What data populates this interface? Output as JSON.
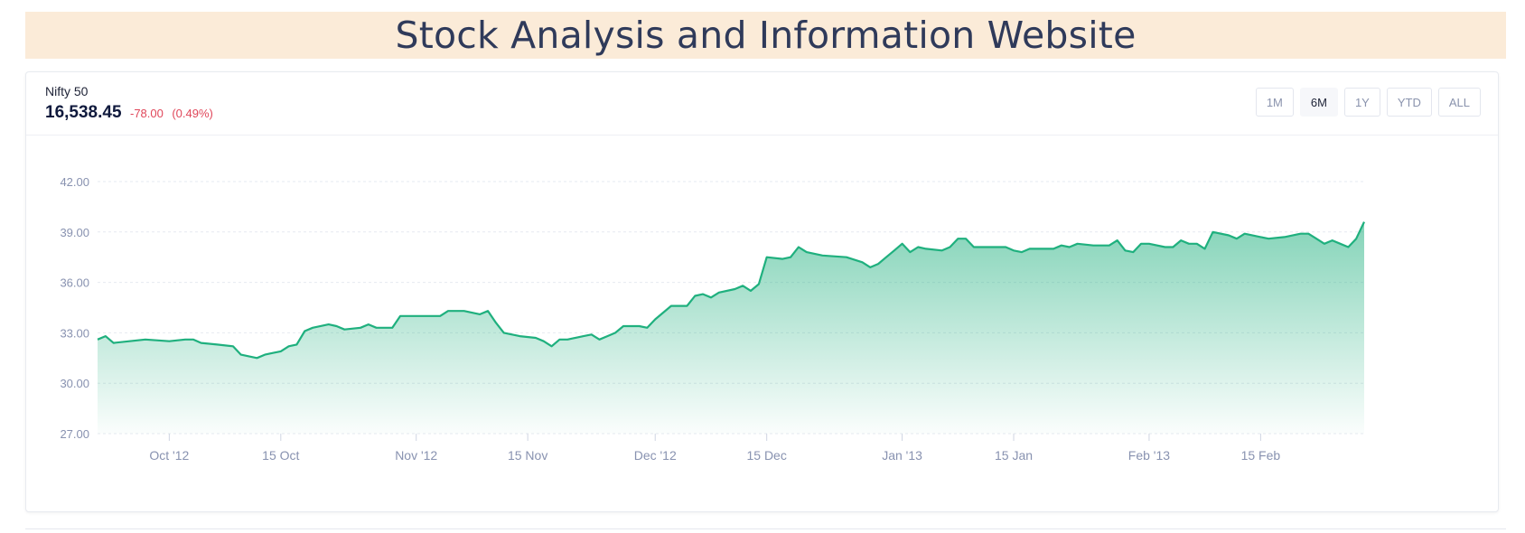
{
  "page": {
    "title": "Stock Analysis and Information Website"
  },
  "stock": {
    "name": "Nifty 50",
    "price": "16,538.45",
    "change": "-78.00",
    "change_pct": "(0.49%)"
  },
  "range_buttons": [
    {
      "label": "1M",
      "active": false
    },
    {
      "label": "6M",
      "active": true
    },
    {
      "label": "1Y",
      "active": false
    },
    {
      "label": "YTD",
      "active": false
    },
    {
      "label": "ALL",
      "active": false
    }
  ],
  "colors": {
    "line": "#1fb07e",
    "area_top": "#1fb07e",
    "negative": "#e0475a",
    "header_bg": "#fbebd8"
  },
  "chart_data": {
    "type": "area",
    "x_range": [
      "2012-09-22",
      "2013-02-28"
    ],
    "ylim": [
      27,
      42
    ],
    "y_ticks": [
      "27.00",
      "30.00",
      "33.00",
      "36.00",
      "39.00",
      "42.00"
    ],
    "x_ticks": [
      {
        "label": "Oct '12",
        "date": "2012-10-01"
      },
      {
        "label": "15 Oct",
        "date": "2012-10-15"
      },
      {
        "label": "Nov '12",
        "date": "2012-11-01"
      },
      {
        "label": "15 Nov",
        "date": "2012-11-15"
      },
      {
        "label": "Dec '12",
        "date": "2012-12-01"
      },
      {
        "label": "15 Dec",
        "date": "2012-12-15"
      },
      {
        "label": "Jan '13",
        "date": "2013-01-01"
      },
      {
        "label": "15 Jan",
        "date": "2013-01-15"
      },
      {
        "label": "Feb '13",
        "date": "2013-02-01"
      },
      {
        "label": "15 Feb",
        "date": "2013-02-15"
      }
    ],
    "grid": true,
    "series": [
      {
        "points": [
          [
            "2012-09-22",
            32.6
          ],
          [
            "2012-09-23",
            32.8
          ],
          [
            "2012-09-24",
            32.4
          ],
          [
            "2012-09-26",
            32.5
          ],
          [
            "2012-09-28",
            32.6
          ],
          [
            "2012-10-01",
            32.5
          ],
          [
            "2012-10-03",
            32.6
          ],
          [
            "2012-10-04",
            32.6
          ],
          [
            "2012-10-05",
            32.4
          ],
          [
            "2012-10-07",
            32.3
          ],
          [
            "2012-10-09",
            32.2
          ],
          [
            "2012-10-10",
            31.7
          ],
          [
            "2012-10-11",
            31.6
          ],
          [
            "2012-10-12",
            31.5
          ],
          [
            "2012-10-13",
            31.7
          ],
          [
            "2012-10-14",
            31.8
          ],
          [
            "2012-10-15",
            31.9
          ],
          [
            "2012-10-16",
            32.2
          ],
          [
            "2012-10-17",
            32.3
          ],
          [
            "2012-10-18",
            33.1
          ],
          [
            "2012-10-19",
            33.3
          ],
          [
            "2012-10-21",
            33.5
          ],
          [
            "2012-10-22",
            33.4
          ],
          [
            "2012-10-23",
            33.2
          ],
          [
            "2012-10-25",
            33.3
          ],
          [
            "2012-10-26",
            33.5
          ],
          [
            "2012-10-27",
            33.3
          ],
          [
            "2012-10-29",
            33.3
          ],
          [
            "2012-10-30",
            34.0
          ],
          [
            "2012-11-02",
            34.0
          ],
          [
            "2012-11-04",
            34.0
          ],
          [
            "2012-11-05",
            34.3
          ],
          [
            "2012-11-07",
            34.3
          ],
          [
            "2012-11-08",
            34.2
          ],
          [
            "2012-11-09",
            34.1
          ],
          [
            "2012-11-10",
            34.3
          ],
          [
            "2012-11-11",
            33.6
          ],
          [
            "2012-11-12",
            33.0
          ],
          [
            "2012-11-14",
            32.8
          ],
          [
            "2012-11-16",
            32.7
          ],
          [
            "2012-11-17",
            32.5
          ],
          [
            "2012-11-18",
            32.2
          ],
          [
            "2012-11-19",
            32.6
          ],
          [
            "2012-11-20",
            32.6
          ],
          [
            "2012-11-22",
            32.8
          ],
          [
            "2012-11-23",
            32.9
          ],
          [
            "2012-11-24",
            32.6
          ],
          [
            "2012-11-25",
            32.8
          ],
          [
            "2012-11-26",
            33.0
          ],
          [
            "2012-11-27",
            33.4
          ],
          [
            "2012-11-29",
            33.4
          ],
          [
            "2012-11-30",
            33.3
          ],
          [
            "2012-12-01",
            33.8
          ],
          [
            "2012-12-03",
            34.6
          ],
          [
            "2012-12-05",
            34.6
          ],
          [
            "2012-12-06",
            35.2
          ],
          [
            "2012-12-07",
            35.3
          ],
          [
            "2012-12-08",
            35.1
          ],
          [
            "2012-12-09",
            35.4
          ],
          [
            "2012-12-11",
            35.6
          ],
          [
            "2012-12-12",
            35.8
          ],
          [
            "2012-12-13",
            35.5
          ],
          [
            "2012-12-14",
            35.9
          ],
          [
            "2012-12-15",
            37.5
          ],
          [
            "2012-12-17",
            37.4
          ],
          [
            "2012-12-18",
            37.5
          ],
          [
            "2012-12-19",
            38.1
          ],
          [
            "2012-12-20",
            37.8
          ],
          [
            "2012-12-22",
            37.6
          ],
          [
            "2012-12-25",
            37.5
          ],
          [
            "2012-12-27",
            37.2
          ],
          [
            "2012-12-28",
            36.9
          ],
          [
            "2012-12-29",
            37.1
          ],
          [
            "2012-12-30",
            37.5
          ],
          [
            "2012-12-31",
            37.9
          ],
          [
            "2013-01-01",
            38.3
          ],
          [
            "2013-01-02",
            37.8
          ],
          [
            "2013-01-03",
            38.1
          ],
          [
            "2013-01-04",
            38.0
          ],
          [
            "2013-01-06",
            37.9
          ],
          [
            "2013-01-07",
            38.1
          ],
          [
            "2013-01-08",
            38.6
          ],
          [
            "2013-01-09",
            38.6
          ],
          [
            "2013-01-10",
            38.1
          ],
          [
            "2013-01-12",
            38.1
          ],
          [
            "2013-01-14",
            38.1
          ],
          [
            "2013-01-15",
            37.9
          ],
          [
            "2013-01-16",
            37.8
          ],
          [
            "2013-01-17",
            38.0
          ],
          [
            "2013-01-20",
            38.0
          ],
          [
            "2013-01-21",
            38.2
          ],
          [
            "2013-01-22",
            38.1
          ],
          [
            "2013-01-23",
            38.3
          ],
          [
            "2013-01-25",
            38.2
          ],
          [
            "2013-01-27",
            38.2
          ],
          [
            "2013-01-28",
            38.5
          ],
          [
            "2013-01-29",
            37.9
          ],
          [
            "2013-01-30",
            37.8
          ],
          [
            "2013-01-31",
            38.3
          ],
          [
            "2013-02-01",
            38.3
          ],
          [
            "2013-02-03",
            38.1
          ],
          [
            "2013-02-04",
            38.1
          ],
          [
            "2013-02-05",
            38.5
          ],
          [
            "2013-02-06",
            38.3
          ],
          [
            "2013-02-07",
            38.3
          ],
          [
            "2013-02-08",
            38.0
          ],
          [
            "2013-02-09",
            39.0
          ],
          [
            "2013-02-11",
            38.8
          ],
          [
            "2013-02-12",
            38.6
          ],
          [
            "2013-02-13",
            38.9
          ],
          [
            "2013-02-15",
            38.7
          ],
          [
            "2013-02-16",
            38.6
          ],
          [
            "2013-02-18",
            38.7
          ],
          [
            "2013-02-20",
            38.9
          ],
          [
            "2013-02-21",
            38.9
          ],
          [
            "2013-02-22",
            38.6
          ],
          [
            "2013-02-23",
            38.3
          ],
          [
            "2013-02-24",
            38.5
          ],
          [
            "2013-02-25",
            38.3
          ],
          [
            "2013-02-26",
            38.1
          ],
          [
            "2013-02-27",
            38.6
          ],
          [
            "2013-02-28",
            39.6
          ]
        ]
      }
    ]
  }
}
